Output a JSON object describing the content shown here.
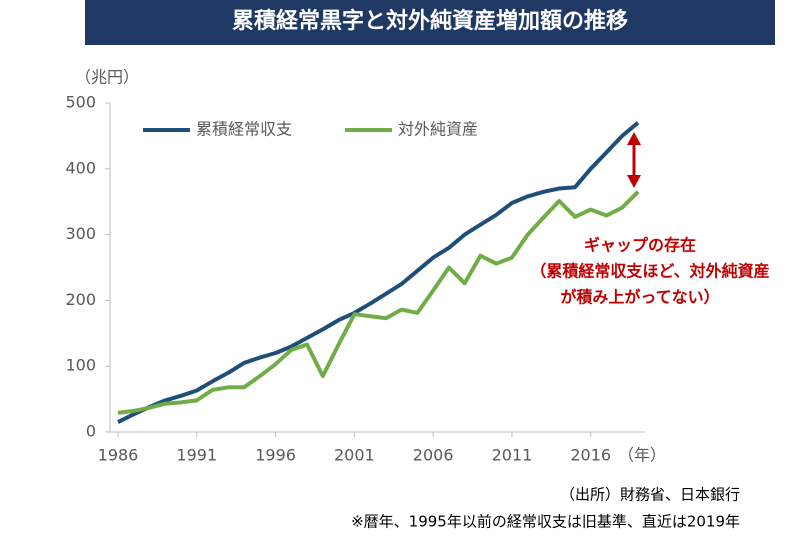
{
  "chart_data": {
    "type": "line",
    "title": "累積経常黒字と対外純資産増加額の推移",
    "y_unit": "（兆円）",
    "x_unit": "（年）",
    "x": [
      1986,
      1987,
      1988,
      1989,
      1990,
      1991,
      1992,
      1993,
      1994,
      1995,
      1996,
      1997,
      1998,
      1999,
      2000,
      2001,
      2002,
      2003,
      2004,
      2005,
      2006,
      2007,
      2008,
      2009,
      2010,
      2011,
      2012,
      2013,
      2014,
      2015,
      2016,
      2017,
      2018,
      2019
    ],
    "xlim": [
      1986,
      2019
    ],
    "xticks": [
      1986,
      1991,
      1996,
      2001,
      2006,
      2011,
      2016
    ],
    "ylim": [
      0,
      500
    ],
    "yticks": [
      0,
      100,
      200,
      300,
      400,
      500
    ],
    "series": [
      {
        "name": "累積経常収支",
        "color": "#1f4e79",
        "values": [
          15,
          27,
          38,
          48,
          55,
          63,
          77,
          90,
          105,
          113,
          120,
          130,
          143,
          156,
          170,
          181,
          195,
          210,
          225,
          245,
          265,
          280,
          300,
          315,
          330,
          348,
          358,
          365,
          370,
          372,
          400,
          425,
          450,
          470
        ]
      },
      {
        "name": "対外純資産",
        "color": "#70ad47",
        "values": [
          29,
          32,
          37,
          43,
          45,
          48,
          64,
          68,
          68,
          85,
          103,
          125,
          133,
          85,
          133,
          179,
          176,
          173,
          186,
          181,
          215,
          250,
          226,
          268,
          256,
          265,
          300,
          326,
          351,
          327,
          338,
          329,
          341,
          365
        ]
      }
    ],
    "annotations": [
      "ギャップの存在",
      "（累積経常収支ほど、対外純資産",
      "が積み上がってない）"
    ],
    "footnotes": [
      "（出所）財務省、日本銀行",
      "※暦年、1995年以前の経常収支は旧基準、直近は2019年"
    ]
  }
}
